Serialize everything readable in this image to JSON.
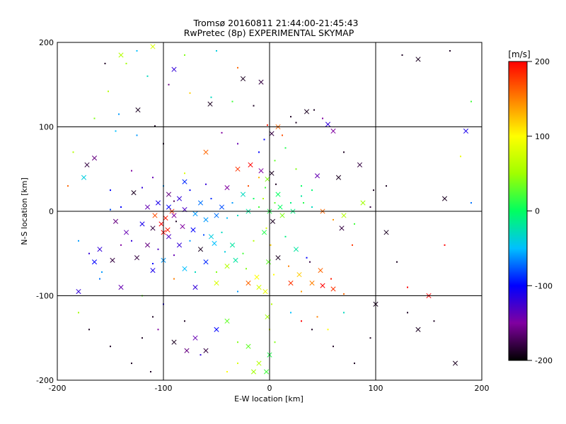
{
  "chart_data": {
    "type": "scatter",
    "title": "Tromsø 20160811 21:44:00-21:45:43",
    "subtitle": "RwPretec (8p) EXPERIMENTAL SKYMAP",
    "xlabel": "E-W location [km]",
    "ylabel": "N-S location [km]",
    "xlim": [
      -200,
      200
    ],
    "ylim": [
      -200,
      200
    ],
    "xticks": [
      "-200",
      "-100",
      "0",
      "100",
      "200"
    ],
    "yticks": [
      "-200",
      "-100",
      "0",
      "100",
      "200"
    ],
    "grid": true,
    "colorbar": {
      "label": "[m/s]",
      "range": [
        -200,
        200
      ],
      "ticks": [
        "200",
        "100",
        "0",
        "-100",
        "-200"
      ],
      "colormap": [
        "#000000",
        "#8000a0",
        "#0000ff",
        "#00c0ff",
        "#00ff60",
        "#a0ff00",
        "#ffff00",
        "#ff8000",
        "#ff0000"
      ]
    },
    "points": [
      [
        -172,
        55,
        -180,
        1
      ],
      [
        -165,
        63,
        -160,
        1
      ],
      [
        -152,
        142,
        60,
        0
      ],
      [
        -142,
        115,
        -60,
        0
      ],
      [
        -124,
        120,
        -190,
        1
      ],
      [
        -108,
        101,
        -190,
        0
      ],
      [
        -90,
        168,
        -120,
        1
      ],
      [
        -56,
        127,
        -190,
        1
      ],
      [
        -45,
        93,
        -150,
        0
      ],
      [
        -25,
        157,
        -190,
        1
      ],
      [
        -8,
        153,
        -180,
        1
      ],
      [
        20,
        112,
        -190,
        0
      ],
      [
        42,
        120,
        -190,
        0
      ],
      [
        55,
        103,
        -120,
        1
      ],
      [
        60,
        95,
        -150,
        1
      ],
      [
        85,
        55,
        -180,
        1
      ],
      [
        -125,
        90,
        -60,
        0
      ],
      [
        -100,
        80,
        -190,
        0
      ],
      [
        -60,
        70,
        160,
        1
      ],
      [
        -30,
        80,
        -140,
        0
      ],
      [
        -10,
        70,
        -100,
        0
      ],
      [
        5,
        60,
        30,
        0
      ],
      [
        25,
        50,
        40,
        0
      ],
      [
        45,
        42,
        -140,
        1
      ],
      [
        65,
        40,
        -190,
        1
      ],
      [
        -130,
        48,
        -150,
        0
      ],
      [
        -110,
        40,
        -140,
        0
      ],
      [
        -80,
        45,
        80,
        0
      ],
      [
        -30,
        50,
        180,
        1
      ],
      [
        -10,
        40,
        130,
        0
      ],
      [
        30,
        30,
        0,
        0
      ],
      [
        -150,
        25,
        -100,
        0
      ],
      [
        -128,
        22,
        -190,
        1
      ],
      [
        -105,
        10,
        -110,
        1
      ],
      [
        -95,
        5,
        -100,
        1
      ],
      [
        -90,
        -5,
        -150,
        1
      ],
      [
        -80,
        2,
        -130,
        1
      ],
      [
        -70,
        -3,
        -60,
        1
      ],
      [
        -60,
        -10,
        -60,
        1
      ],
      [
        -50,
        -5,
        -70,
        1
      ],
      [
        -40,
        -8,
        -50,
        0
      ],
      [
        -30,
        -5,
        -30,
        0
      ],
      [
        -20,
        0,
        -20,
        1
      ],
      [
        -10,
        5,
        20,
        0
      ],
      [
        0,
        0,
        10,
        1
      ],
      [
        10,
        5,
        0,
        1
      ],
      [
        20,
        10,
        -10,
        0
      ],
      [
        30,
        18,
        -20,
        0
      ],
      [
        40,
        25,
        -5,
        0
      ],
      [
        -120,
        -15,
        -110,
        1
      ],
      [
        -110,
        -20,
        -180,
        1
      ],
      [
        -100,
        -25,
        200,
        1
      ],
      [
        -95,
        -30,
        -130,
        1
      ],
      [
        -85,
        -40,
        -120,
        1
      ],
      [
        -75,
        -35,
        -60,
        0
      ],
      [
        -65,
        -45,
        -190,
        1
      ],
      [
        -55,
        -30,
        -40,
        1
      ],
      [
        -45,
        -25,
        -30,
        0
      ],
      [
        -35,
        -40,
        -20,
        1
      ],
      [
        -25,
        -50,
        20,
        0
      ],
      [
        -15,
        -35,
        60,
        0
      ],
      [
        -5,
        -25,
        10,
        1
      ],
      [
        15,
        -30,
        -10,
        0
      ],
      [
        25,
        -45,
        -20,
        1
      ],
      [
        35,
        -55,
        -100,
        0
      ],
      [
        -180,
        -35,
        -60,
        0
      ],
      [
        -160,
        -45,
        -120,
        1
      ],
      [
        -140,
        -40,
        -150,
        0
      ],
      [
        -125,
        -55,
        -180,
        1
      ],
      [
        -110,
        -70,
        -110,
        1
      ],
      [
        -90,
        -80,
        150,
        0
      ],
      [
        -70,
        -90,
        -120,
        1
      ],
      [
        -50,
        -85,
        80,
        1
      ],
      [
        -30,
        -95,
        -60,
        0
      ],
      [
        -20,
        -85,
        160,
        1
      ],
      [
        -10,
        -90,
        80,
        1
      ],
      [
        20,
        -85,
        180,
        1
      ],
      [
        30,
        -95,
        140,
        0
      ],
      [
        40,
        -85,
        150,
        1
      ],
      [
        50,
        -88,
        200,
        1
      ],
      [
        60,
        -92,
        180,
        1
      ],
      [
        70,
        -98,
        160,
        0
      ],
      [
        -180,
        -95,
        -120,
        1
      ],
      [
        -160,
        -80,
        -70,
        0
      ],
      [
        -140,
        -90,
        -140,
        1
      ],
      [
        -120,
        -100,
        30,
        0
      ],
      [
        -100,
        -110,
        -110,
        0
      ],
      [
        -80,
        -130,
        -190,
        0
      ],
      [
        -70,
        -150,
        -140,
        1
      ],
      [
        -60,
        -165,
        -180,
        1
      ],
      [
        -50,
        -140,
        -100,
        1
      ],
      [
        -40,
        -130,
        30,
        1
      ],
      [
        -30,
        -155,
        40,
        0
      ],
      [
        -20,
        -160,
        30,
        1
      ],
      [
        -10,
        -180,
        60,
        1
      ],
      [
        0,
        -170,
        10,
        1
      ],
      [
        -105,
        -140,
        -150,
        0
      ],
      [
        -90,
        -155,
        -190,
        1
      ],
      [
        -78,
        -165,
        -160,
        1
      ],
      [
        -65,
        -170,
        -120,
        0
      ],
      [
        -30,
        -180,
        80,
        0
      ],
      [
        -15,
        -190,
        50,
        1
      ],
      [
        -40,
        -190,
        100,
        0
      ],
      [
        100,
        -110,
        -190,
        1
      ],
      [
        110,
        -25,
        -190,
        1
      ],
      [
        130,
        -120,
        -190,
        0
      ],
      [
        150,
        -100,
        200,
        1
      ],
      [
        165,
        15,
        -190,
        1
      ],
      [
        175,
        -180,
        -190,
        1
      ],
      [
        185,
        95,
        -110,
        1
      ],
      [
        190,
        10,
        -70,
        0
      ],
      [
        -190,
        30,
        160,
        0
      ],
      [
        -175,
        40,
        -40,
        1
      ],
      [
        -155,
        175,
        -190,
        0
      ],
      [
        -140,
        185,
        60,
        1
      ],
      [
        -125,
        190,
        -50,
        0
      ],
      [
        -110,
        195,
        80,
        1
      ],
      [
        -80,
        185,
        40,
        0
      ],
      [
        -50,
        190,
        -40,
        0
      ],
      [
        -30,
        170,
        160,
        0
      ],
      [
        125,
        185,
        -190,
        0
      ],
      [
        140,
        180,
        -190,
        1
      ],
      [
        170,
        190,
        -190,
        0
      ],
      [
        -95,
        20,
        -160,
        1
      ],
      [
        -85,
        15,
        -120,
        1
      ],
      [
        -75,
        25,
        -100,
        0
      ],
      [
        -65,
        10,
        -70,
        1
      ],
      [
        -55,
        15,
        -90,
        0
      ],
      [
        -45,
        5,
        -80,
        1
      ],
      [
        -35,
        10,
        -60,
        0
      ],
      [
        -25,
        20,
        -30,
        1
      ],
      [
        -15,
        15,
        0,
        0
      ],
      [
        5,
        10,
        30,
        0
      ],
      [
        12,
        -5,
        40,
        1
      ],
      [
        22,
        0,
        -10,
        1
      ],
      [
        32,
        10,
        10,
        0
      ],
      [
        -140,
        5,
        -100,
        0
      ],
      [
        -135,
        -25,
        -140,
        1
      ],
      [
        -130,
        -35,
        -120,
        0
      ],
      [
        -115,
        -40,
        -160,
        1
      ],
      [
        -105,
        -45,
        -130,
        0
      ],
      [
        -98,
        -8,
        190,
        1
      ],
      [
        -92,
        0,
        180,
        1
      ],
      [
        -88,
        -12,
        -190,
        0
      ],
      [
        -82,
        -18,
        -150,
        1
      ],
      [
        -72,
        -22,
        -100,
        1
      ],
      [
        -62,
        -28,
        -80,
        0
      ],
      [
        -52,
        -38,
        -50,
        1
      ],
      [
        -42,
        -48,
        -40,
        0
      ],
      [
        -32,
        -58,
        -20,
        1
      ],
      [
        -22,
        -68,
        40,
        0
      ],
      [
        -12,
        -78,
        100,
        1
      ],
      [
        8,
        -55,
        -190,
        1
      ],
      [
        18,
        -65,
        150,
        0
      ],
      [
        28,
        -75,
        120,
        1
      ],
      [
        38,
        -60,
        -180,
        0
      ],
      [
        48,
        -70,
        160,
        1
      ],
      [
        58,
        -80,
        190,
        0
      ],
      [
        68,
        -20,
        -180,
        1
      ],
      [
        78,
        -40,
        180,
        0
      ],
      [
        88,
        10,
        50,
        1
      ],
      [
        98,
        25,
        -190,
        0
      ],
      [
        8,
        100,
        160,
        1
      ],
      [
        12,
        90,
        170,
        0
      ],
      [
        -2,
        102,
        190,
        0
      ],
      [
        2,
        92,
        -180,
        1
      ],
      [
        -5,
        85,
        -100,
        0
      ],
      [
        15,
        75,
        10,
        0
      ],
      [
        -18,
        55,
        200,
        1
      ],
      [
        -8,
        48,
        -150,
        1
      ],
      [
        2,
        45,
        -190,
        1
      ],
      [
        -2,
        38,
        40,
        1
      ],
      [
        6,
        32,
        -190,
        0
      ],
      [
        -4,
        28,
        20,
        0
      ],
      [
        8,
        20,
        0,
        1
      ],
      [
        -6,
        15,
        60,
        0
      ],
      [
        3,
        -12,
        -190,
        1
      ],
      [
        -3,
        -20,
        80,
        0
      ],
      [
        1,
        -40,
        120,
        0
      ],
      [
        -1,
        -60,
        30,
        1
      ],
      [
        4,
        -75,
        100,
        0
      ],
      [
        -4,
        -95,
        90,
        1
      ],
      [
        2,
        -110,
        60,
        0
      ],
      [
        -2,
        -125,
        50,
        1
      ],
      [
        0,
        -140,
        80,
        0
      ],
      [
        5,
        -155,
        40,
        0
      ],
      [
        -3,
        -190,
        20,
        1
      ],
      [
        -110,
        -62,
        -100,
        0
      ],
      [
        -100,
        -58,
        -60,
        1
      ],
      [
        -90,
        -52,
        -140,
        0
      ],
      [
        -80,
        -68,
        -50,
        1
      ],
      [
        -70,
        -72,
        -30,
        0
      ],
      [
        -60,
        -60,
        -90,
        1
      ],
      [
        -50,
        -72,
        40,
        0
      ],
      [
        -40,
        -65,
        60,
        1
      ],
      [
        -150,
        2,
        -80,
        0
      ],
      [
        -145,
        -12,
        -160,
        1
      ],
      [
        -115,
        5,
        -140,
        1
      ],
      [
        -108,
        -5,
        170,
        1
      ],
      [
        -102,
        -15,
        200,
        1
      ],
      [
        -96,
        -22,
        190,
        1
      ],
      [
        -90,
        12,
        -170,
        0
      ],
      [
        -120,
        28,
        -120,
        0
      ],
      [
        -100,
        30,
        -60,
        0
      ],
      [
        -80,
        35,
        -90,
        1
      ],
      [
        -60,
        32,
        -120,
        0
      ],
      [
        -40,
        28,
        -150,
        1
      ],
      [
        -20,
        30,
        170,
        0
      ],
      [
        -170,
        -50,
        -120,
        0
      ],
      [
        -165,
        -60,
        -100,
        1
      ],
      [
        -158,
        -72,
        -60,
        0
      ],
      [
        -148,
        -58,
        -180,
        1
      ],
      [
        40,
        5,
        -30,
        0
      ],
      [
        50,
        0,
        160,
        1
      ],
      [
        60,
        -10,
        140,
        0
      ],
      [
        70,
        -5,
        60,
        1
      ],
      [
        80,
        -15,
        20,
        0
      ],
      [
        95,
        5,
        -180,
        0
      ],
      [
        110,
        30,
        -190,
        0
      ],
      [
        120,
        -60,
        -190,
        0
      ],
      [
        130,
        -90,
        200,
        0
      ],
      [
        140,
        -140,
        -190,
        1
      ],
      [
        155,
        -130,
        -190,
        0
      ],
      [
        165,
        -40,
        200,
        0
      ],
      [
        180,
        65,
        90,
        0
      ],
      [
        190,
        130,
        20,
        0
      ],
      [
        -135,
        175,
        50,
        0
      ],
      [
        -115,
        160,
        -30,
        0
      ],
      [
        -95,
        150,
        -160,
        0
      ],
      [
        -75,
        140,
        120,
        0
      ],
      [
        -55,
        135,
        -30,
        0
      ],
      [
        -35,
        130,
        20,
        0
      ],
      [
        -15,
        125,
        -190,
        0
      ],
      [
        25,
        105,
        -190,
        0
      ],
      [
        35,
        118,
        -190,
        1
      ],
      [
        50,
        110,
        -150,
        0
      ],
      [
        70,
        70,
        -190,
        0
      ],
      [
        -185,
        70,
        60,
        0
      ],
      [
        -165,
        110,
        40,
        0
      ],
      [
        -145,
        95,
        -50,
        0
      ],
      [
        -180,
        -120,
        50,
        0
      ],
      [
        -170,
        -140,
        -190,
        0
      ],
      [
        -150,
        -160,
        -190,
        0
      ],
      [
        -130,
        -180,
        -190,
        0
      ],
      [
        -112,
        -190,
        -190,
        0
      ],
      [
        -120,
        -150,
        -190,
        0
      ],
      [
        -110,
        -125,
        -190,
        0
      ],
      [
        40,
        -140,
        -190,
        0
      ],
      [
        60,
        -160,
        -190,
        0
      ],
      [
        80,
        -180,
        -190,
        0
      ],
      [
        95,
        -150,
        -190,
        0
      ],
      [
        20,
        -120,
        -50,
        0
      ],
      [
        30,
        -130,
        200,
        0
      ],
      [
        45,
        -125,
        150,
        0
      ],
      [
        55,
        -140,
        100,
        0
      ],
      [
        70,
        -120,
        -30,
        0
      ]
    ]
  }
}
